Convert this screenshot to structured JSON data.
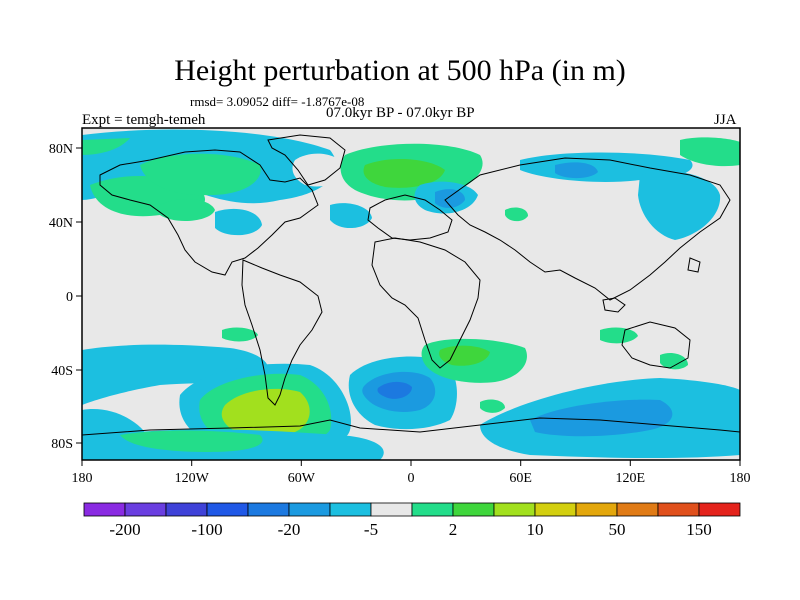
{
  "title": "Height perturbation at 500 hPa (in m)",
  "stats": "rmsd= 3.09052 diff= -1.8767e-08",
  "subtitle": "07.0kyr BP - 07.0kyr BP",
  "experiment": "Expt = temgh-temeh",
  "season": "JJA",
  "axes": {
    "x_ticks": [
      "180",
      "120W",
      "60W",
      "0",
      "60E",
      "120E",
      "180"
    ],
    "y_ticks": [
      "80N",
      "40N",
      "0",
      "40S",
      "80S"
    ]
  },
  "colorbar": {
    "colors": [
      "#8a2be2",
      "#6a3ee0",
      "#3f42d8",
      "#2058e6",
      "#1c79e0",
      "#1b9ae0",
      "#1cbfe0",
      "#e8e8e8",
      "#23dd8a",
      "#3fd63c",
      "#a2e01e",
      "#d3cf0f",
      "#e3a70c",
      "#e07b16",
      "#e0501c",
      "#e4231c"
    ],
    "labels": [
      "-200",
      "-100",
      "-20",
      "-5",
      "2",
      "10",
      "50",
      "150"
    ]
  },
  "colors": {
    "background_field": "#e8e8e8",
    "light_blue": "#1cbfe0",
    "mid_blue": "#1b9ae0",
    "blue": "#1c79e0",
    "light_green": "#23dd8a",
    "green": "#3fd63c",
    "yellow_green": "#a2e01e"
  }
}
